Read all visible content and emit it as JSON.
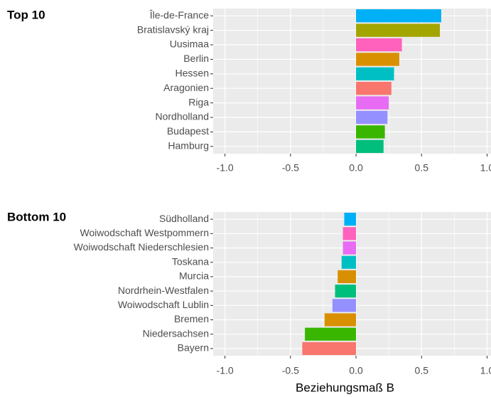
{
  "chart_data": [
    {
      "type": "bar",
      "orientation": "horizontal",
      "title": "Top 10",
      "categories": [
        "Île-de-France",
        "Bratislavský kraj",
        "Uusimaa",
        "Berlin",
        "Hessen",
        "Aragonien",
        "Riga",
        "Nordholland",
        "Budapest",
        "Hamburg"
      ],
      "values": [
        0.65,
        0.64,
        0.35,
        0.33,
        0.29,
        0.27,
        0.25,
        0.24,
        0.22,
        0.21
      ],
      "colors": [
        "#00B0F6",
        "#A3A500",
        "#FF62BC",
        "#D89000",
        "#00BFC4",
        "#F8766D",
        "#E76BF3",
        "#9590FF",
        "#39B600",
        "#00BF7D"
      ],
      "xlim": [
        -1.09,
        1.03
      ],
      "xticks": [
        {
          "value": -1,
          "label": "-1.0"
        },
        {
          "value": -0.5,
          "label": "-0.5"
        },
        {
          "value": 0,
          "label": "0.0"
        },
        {
          "value": 0.5,
          "label": "0.5"
        },
        {
          "value": 1,
          "label": "1.0"
        }
      ],
      "grid": true
    },
    {
      "type": "bar",
      "orientation": "horizontal",
      "title": "Bottom 10",
      "x_label": "Beziehungsmaß B",
      "categories": [
        "Südholland",
        "Woiwodschaft Westpommern",
        "Woiwodschaft Niederschlesien",
        "Toskana",
        "Murcia",
        "Nordrhein-Westfalen",
        "Woiwodschaft Lublin",
        "Bremen",
        "Niedersachsen",
        "Bayern"
      ],
      "values": [
        -0.09,
        -0.1,
        -0.1,
        -0.11,
        -0.14,
        -0.16,
        -0.18,
        -0.24,
        -0.39,
        -0.41
      ],
      "colors": [
        "#00B0F6",
        "#FF62BC",
        "#E76BF3",
        "#00BFC4",
        "#D89000",
        "#00BF7D",
        "#9590FF",
        "#D89000",
        "#39B600",
        "#F8766D"
      ],
      "xlim": [
        -1.09,
        1.03
      ],
      "xticks": [
        {
          "value": -1,
          "label": "-1.0"
        },
        {
          "value": -0.5,
          "label": "-0.5"
        },
        {
          "value": 0,
          "label": "0.0"
        },
        {
          "value": 0.5,
          "label": "0.5"
        },
        {
          "value": 1,
          "label": "1.0"
        }
      ],
      "grid": true
    }
  ]
}
